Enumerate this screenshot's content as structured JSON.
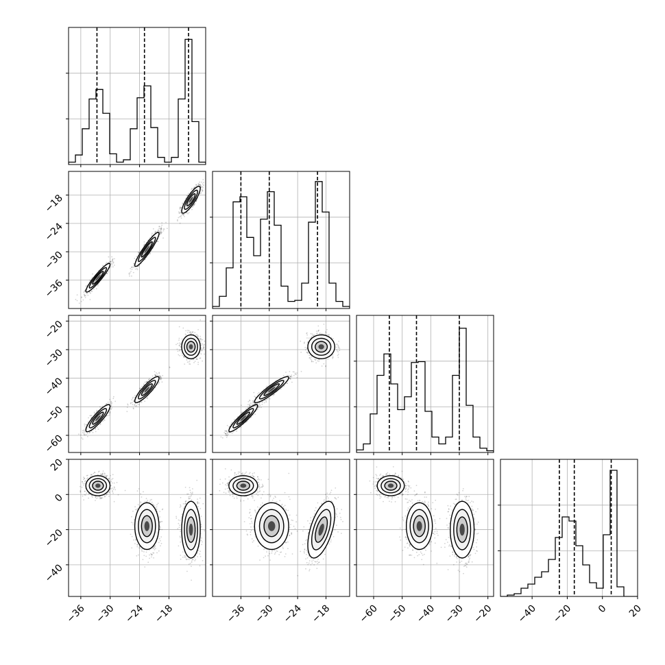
{
  "chart_data": {
    "type": "corner",
    "grid": true,
    "panel_ranges": [
      [
        -38.5,
        -10.5
      ],
      [
        -42,
        -13
      ],
      [
        -66,
        -18
      ],
      [
        -58,
        20
      ]
    ],
    "panel_ticks": [
      [
        -36,
        -30,
        -24,
        -18
      ],
      [
        -36,
        -30,
        -24,
        -18
      ],
      [
        -60,
        -50,
        -40,
        -30,
        -20
      ],
      [
        -40,
        -20,
        0,
        20
      ]
    ],
    "y_tick_label_lists": [
      [
        "-18",
        "-24",
        "-30",
        "-36"
      ],
      [
        "-20",
        "-30",
        "-40",
        "-50",
        "-60"
      ],
      [
        "20",
        "0",
        "-20",
        "-40"
      ]
    ],
    "x_tick_label_lists": [
      [
        "-36",
        "-30",
        "-24",
        "-18"
      ],
      [
        "-36",
        "-30",
        "-24",
        "-18"
      ],
      [
        "-60",
        "-50",
        "-40",
        "-30",
        "-20"
      ],
      [
        "-40",
        "-20",
        "0",
        "20"
      ]
    ],
    "marginal_histograms": [
      {
        "parameter": 0,
        "bin_edges": [
          -38.5,
          -37.1,
          -35.7,
          -34.3,
          -32.9,
          -31.5,
          -30.1,
          -28.7,
          -27.3,
          -25.9,
          -24.5,
          -23.1,
          -21.7,
          -20.3,
          -18.9,
          -17.5,
          -16.1,
          -14.7,
          -13.3,
          -11.9,
          -10.5
        ],
        "counts": [
          2,
          8,
          30,
          55,
          63,
          43,
          9,
          2,
          4,
          30,
          56,
          66,
          31,
          6,
          2,
          6,
          55,
          105,
          36,
          2
        ],
        "quantiles": [
          -32.7,
          -23.0,
          -14.0
        ],
        "ylim": [
          0,
          115
        ]
      },
      {
        "parameter": 1,
        "bin_edges": [
          -42,
          -40.55,
          -39.1,
          -37.65,
          -36.2,
          -34.75,
          -33.3,
          -31.85,
          -30.4,
          -28.95,
          -27.5,
          -26.05,
          -24.6,
          -23.15,
          -21.7,
          -20.25,
          -18.8,
          -17.35,
          -15.9,
          -14.45,
          -13
        ],
        "counts": [
          2,
          12,
          40,
          105,
          110,
          70,
          52,
          88,
          115,
          82,
          22,
          7,
          8,
          25,
          85,
          125,
          95,
          25,
          7,
          2
        ],
        "quantiles": [
          -36.0,
          -30.0,
          -19.8
        ],
        "ylim": [
          0,
          135
        ]
      },
      {
        "parameter": 2,
        "bin_edges": [
          -66,
          -63.6,
          -61.2,
          -58.8,
          -56.4,
          -54,
          -51.6,
          -49.2,
          -46.8,
          -44.4,
          -42,
          -39.6,
          -37.2,
          -34.8,
          -32.4,
          -30,
          -27.6,
          -25.2,
          -22.8,
          -20.4,
          -18
        ],
        "counts": [
          3,
          10,
          45,
          90,
          115,
          80,
          50,
          65,
          105,
          106,
          48,
          18,
          10,
          18,
          90,
          145,
          55,
          18,
          5,
          2
        ],
        "quantiles": [
          -54.5,
          -45.0,
          -30.0
        ],
        "ylim": [
          0,
          160
        ]
      },
      {
        "parameter": 3,
        "bin_edges": [
          -58,
          -54.1,
          -50.2,
          -46.3,
          -42.4,
          -38.5,
          -34.6,
          -30.7,
          -26.8,
          -22.9,
          -19,
          -15.1,
          -11.2,
          -7.3,
          -3.4,
          0.5,
          4.4,
          8.3,
          12.2,
          16.1,
          20
        ],
        "counts": [
          0,
          1,
          2,
          6,
          9,
          14,
          18,
          27,
          43,
          58,
          55,
          37,
          23,
          10,
          6,
          45,
          92,
          7,
          0,
          0
        ],
        "quantiles": [
          -24.5,
          -16.0,
          5.0
        ],
        "ylim": [
          0,
          100
        ]
      }
    ],
    "modes": [
      {
        "p": [
          -32.5,
          -35.5,
          -54.0,
          5.0
        ],
        "scale": [
          1.3,
          1.6,
          2.5,
          3.0
        ],
        "rho": {
          "0-1": 0.93,
          "0-2": 0.88,
          "1-2": 0.92
        }
      },
      {
        "p": [
          -22.5,
          -29.5,
          -44.0,
          -18.0
        ],
        "scale": [
          1.3,
          1.9,
          2.4,
          7.0
        ],
        "rho": {
          "0-1": 0.93,
          "0-2": 0.88,
          "1-2": 0.92
        }
      },
      {
        "p": [
          -13.5,
          -19.0,
          -29.0,
          -20.0
        ],
        "scale": [
          1.0,
          1.5,
          2.2,
          8.5
        ],
        "rho": {
          "0-1": 0.85,
          "0-2": 0.0,
          "1-2": 0.0,
          "1-3": 0.55
        }
      }
    ]
  }
}
